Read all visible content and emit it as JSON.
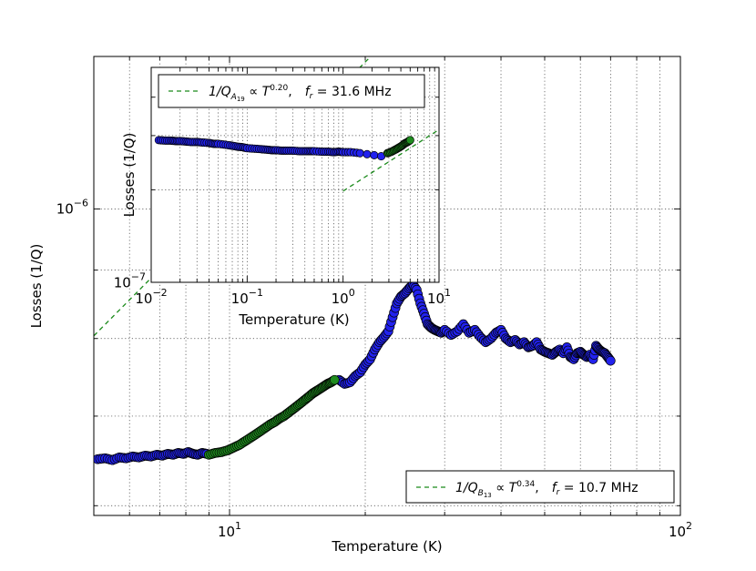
{
  "chart_data": [
    {
      "type": "scatter",
      "name": "main",
      "xlabel": "Temperature (K)",
      "ylabel": "Losses (1/Q)",
      "xscale": "log",
      "yscale": "log",
      "xlim": [
        5,
        100
      ],
      "ylim": [
        5.9e-07,
        1.3e-06
      ],
      "xtick_labels": [
        {
          "value": 10,
          "base": "10",
          "exp": "1"
        },
        {
          "value": 100,
          "base": "10",
          "exp": "2"
        }
      ],
      "ytick_labels": [
        {
          "value": 1e-06,
          "base": "10",
          "exp": "−6"
        }
      ],
      "legend": {
        "location": "lower-right",
        "label_latex": "1/Q_{B_{13}} ∝ T^{0.34}, f_r = 10.7 MHz",
        "parts": {
          "lhs": "1/Q",
          "sub": "B",
          "subsub": "13",
          "prop": " ∝ T",
          "exp": "0.34",
          "sep": ",",
          "fr": "f",
          "frsub": "r",
          "freq": " = 10.7 MHz"
        }
      },
      "fit": {
        "exponent": 0.34,
        "prefactor": 4.65e-07,
        "x_range": [
          5,
          100
        ]
      },
      "series_blue": {
        "x": [
          5.1,
          5.3,
          5.5,
          5.7,
          5.9,
          6.1,
          6.3,
          6.5,
          6.7,
          6.9,
          7.1,
          7.3,
          7.5,
          7.7,
          7.9,
          8.1,
          8.3,
          8.5,
          8.7,
          8.9,
          17.5,
          18,
          18.5,
          19,
          19.5,
          20,
          20.5,
          21,
          21.5,
          22,
          22.5,
          23,
          23.5,
          24,
          24.5,
          25,
          25.5,
          26,
          26.5,
          27,
          27.5,
          28,
          28.5,
          29,
          29.5,
          30,
          31,
          32,
          33,
          34,
          35,
          36,
          37,
          38,
          39,
          40,
          41,
          42,
          43,
          44,
          45,
          46,
          47,
          48,
          49,
          50,
          51,
          52,
          53,
          54,
          55,
          56,
          57,
          58,
          59,
          60,
          61,
          62,
          63,
          64,
          65,
          66,
          67,
          68,
          69,
          70
        ],
        "y": [
          6.5e-07,
          6.51e-07,
          6.49e-07,
          6.52e-07,
          6.51e-07,
          6.53e-07,
          6.52e-07,
          6.54e-07,
          6.53e-07,
          6.55e-07,
          6.54e-07,
          6.56e-07,
          6.55e-07,
          6.57e-07,
          6.56e-07,
          6.58e-07,
          6.56e-07,
          6.55e-07,
          6.57e-07,
          6.56e-07,
          7.45e-07,
          7.4e-07,
          7.42e-07,
          7.5e-07,
          7.55e-07,
          7.65e-07,
          7.72e-07,
          7.85e-07,
          7.95e-07,
          8.02e-07,
          8.1e-07,
          8.3e-07,
          8.5e-07,
          8.6e-07,
          8.65e-07,
          8.72e-07,
          8.78e-07,
          8.7e-07,
          8.5e-07,
          8.35e-07,
          8.2e-07,
          8.15e-07,
          8.12e-07,
          8.1e-07,
          8.08e-07,
          8.12e-07,
          8.05e-07,
          8.1e-07,
          8.2e-07,
          8.08e-07,
          8.12e-07,
          8.02e-07,
          7.95e-07,
          8e-07,
          8.08e-07,
          8.12e-07,
          8e-07,
          7.95e-07,
          7.98e-07,
          7.92e-07,
          7.95e-07,
          7.88e-07,
          7.9e-07,
          7.95e-07,
          7.85e-07,
          7.82e-07,
          7.8e-07,
          7.78e-07,
          7.82e-07,
          7.85e-07,
          7.8e-07,
          7.88e-07,
          7.75e-07,
          7.72e-07,
          7.8e-07,
          7.82e-07,
          7.78e-07,
          7.75e-07,
          7.78e-07,
          7.72e-07,
          7.9e-07,
          7.85e-07,
          7.82e-07,
          7.8e-07,
          7.75e-07,
          7.7e-07
        ]
      },
      "series_green": {
        "x": [
          9.0,
          9.3,
          9.6,
          9.9,
          10.2,
          10.5,
          10.8,
          11.1,
          11.4,
          11.7,
          12.0,
          12.3,
          12.6,
          12.9,
          13.2,
          13.5,
          13.8,
          14.1,
          14.4,
          14.7,
          15.0,
          15.3,
          15.6,
          15.9,
          16.2,
          16.5,
          16.8,
          17.1
        ],
        "y": [
          6.55e-07,
          6.57e-07,
          6.58e-07,
          6.6e-07,
          6.63e-07,
          6.66e-07,
          6.7e-07,
          6.74e-07,
          6.78e-07,
          6.82e-07,
          6.86e-07,
          6.9e-07,
          6.93e-07,
          6.97e-07,
          7e-07,
          7.04e-07,
          7.08e-07,
          7.12e-07,
          7.16e-07,
          7.2e-07,
          7.24e-07,
          7.28e-07,
          7.31e-07,
          7.34e-07,
          7.37e-07,
          7.4e-07,
          7.42e-07,
          7.45e-07
        ]
      }
    },
    {
      "type": "scatter",
      "name": "inset",
      "xlabel": "Temperature (K)",
      "ylabel": "Losses (1/Q)",
      "xscale": "log",
      "yscale": "log",
      "xlim": [
        0.01,
        10
      ],
      "ylim": [
        1e-07,
        5e-07
      ],
      "xtick_labels": [
        {
          "value": 0.01,
          "base": "10",
          "exp": "−2"
        },
        {
          "value": 0.1,
          "base": "10",
          "exp": "−1"
        },
        {
          "value": 1,
          "base": "10",
          "exp": "0"
        },
        {
          "value": 10,
          "base": "10",
          "exp": "1"
        }
      ],
      "ytick_labels": [
        {
          "value": 1e-07,
          "base": "10",
          "exp": "−7"
        }
      ],
      "legend": {
        "location": "top-left",
        "label_latex": "1/Q_{A_{19}} ∝ T^{0.20}, f_r = 31.6 MHz",
        "parts": {
          "lhs": "1/Q",
          "sub": "A",
          "subsub": "19",
          "prop": " ∝ T",
          "exp": "0.20",
          "sep": ",",
          "fr": "f",
          "frsub": "r",
          "freq": " = 31.6 MHz"
        }
      },
      "fit": {
        "exponent": 0.2,
        "prefactor": 1.98e-07,
        "x_range": [
          1.0,
          10
        ]
      },
      "series_blue": {
        "x": [
          0.012,
          0.014,
          0.016,
          0.018,
          0.02,
          0.023,
          0.026,
          0.03,
          0.034,
          0.04,
          0.045,
          0.05,
          0.06,
          0.07,
          0.08,
          0.09,
          0.1,
          0.12,
          0.14,
          0.16,
          0.18,
          0.2,
          0.23,
          0.26,
          0.3,
          0.35,
          0.4,
          0.45,
          0.5,
          0.6,
          0.7,
          0.8,
          0.9,
          1.0,
          1.2,
          1.5,
          2.5
        ],
        "y": [
          2.9e-07,
          2.89e-07,
          2.89e-07,
          2.88e-07,
          2.88e-07,
          2.87e-07,
          2.86e-07,
          2.86e-07,
          2.85e-07,
          2.84e-07,
          2.82e-07,
          2.82e-07,
          2.8e-07,
          2.78e-07,
          2.76e-07,
          2.75e-07,
          2.73e-07,
          2.72e-07,
          2.71e-07,
          2.7e-07,
          2.69e-07,
          2.69e-07,
          2.68e-07,
          2.68e-07,
          2.68e-07,
          2.67e-07,
          2.67e-07,
          2.67e-07,
          2.67e-07,
          2.66e-07,
          2.66e-07,
          2.65e-07,
          2.66e-07,
          2.65e-07,
          2.65e-07,
          2.63e-07,
          2.57e-07
        ]
      },
      "series_green": {
        "x": [
          2.9,
          3.2,
          3.5,
          3.8,
          4.1,
          4.4,
          4.7,
          5.0
        ],
        "y": [
          2.63e-07,
          2.66e-07,
          2.7e-07,
          2.74e-07,
          2.78e-07,
          2.83e-07,
          2.86e-07,
          2.9e-07
        ]
      }
    }
  ]
}
